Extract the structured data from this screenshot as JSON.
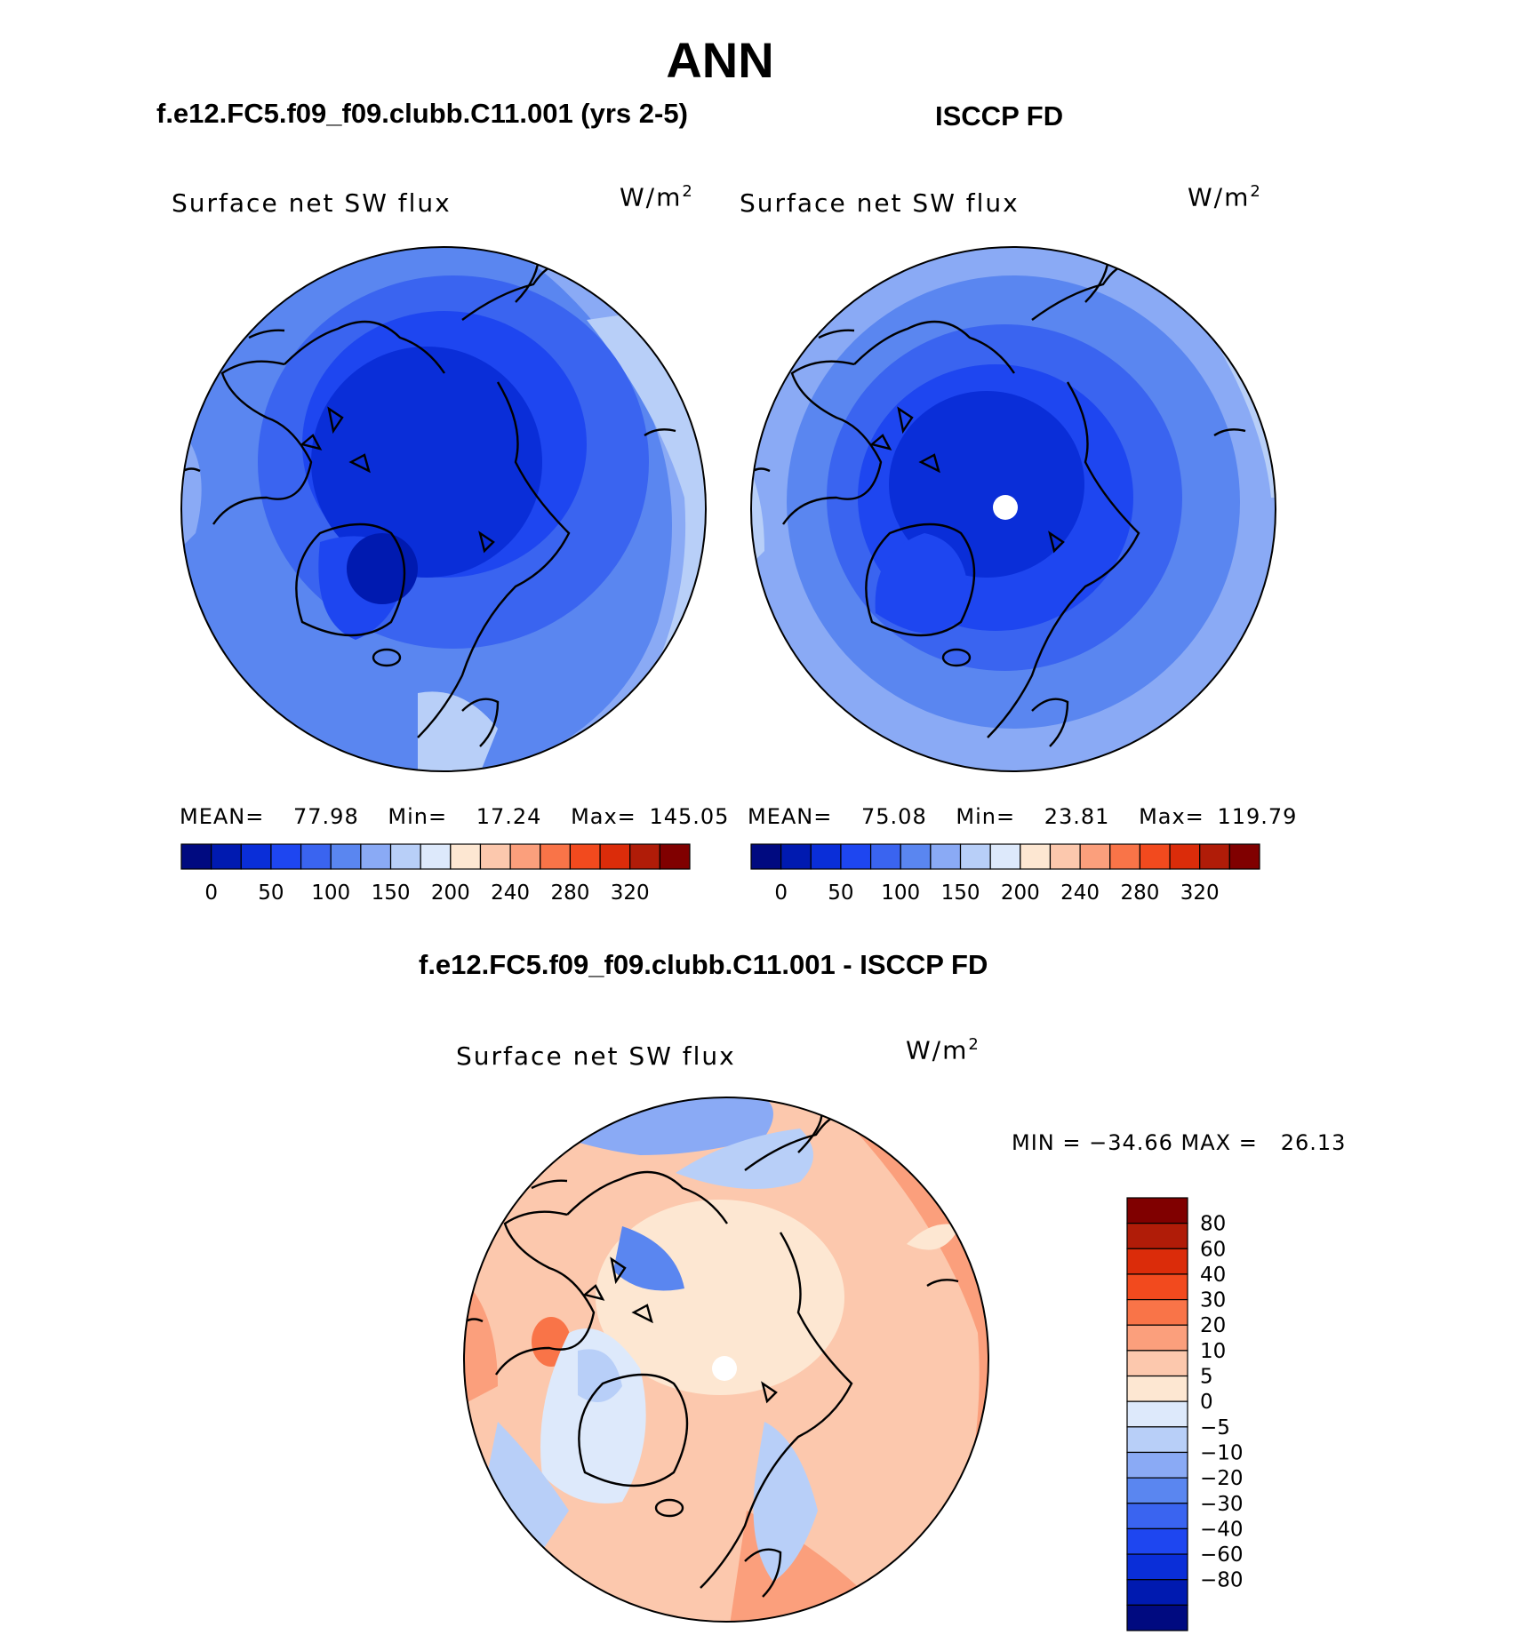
{
  "figure": {
    "title": "ANN",
    "panels": [
      {
        "case_title": "f.e12.FC5.f09_f09.clubb.C11.001 (yrs 2-5)",
        "variable": "Surface net SW flux",
        "units_base": "W/m",
        "units_exp": "2",
        "stats": {
          "mean_label": "MEAN=",
          "mean": "77.98",
          "min_label": "Min=",
          "min": "17.24",
          "max_label": "Max=",
          "max": "145.05"
        },
        "colorbar_labels": [
          "0",
          "50",
          "100",
          "150",
          "200",
          "240",
          "280",
          "320"
        ]
      },
      {
        "case_title": "ISCCP FD",
        "variable": "Surface net SW flux",
        "units_base": "W/m",
        "units_exp": "2",
        "stats": {
          "mean_label": "MEAN=",
          "mean": "75.08",
          "min_label": "Min=",
          "min": "23.81",
          "max_label": "Max=",
          "max": "119.79"
        },
        "colorbar_labels": [
          "0",
          "50",
          "100",
          "150",
          "200",
          "240",
          "280",
          "320"
        ]
      }
    ],
    "diff_panel": {
      "case_title": "f.e12.FC5.f09_f09.clubb.C11.001 - ISCCP FD",
      "variable": "Surface net SW flux",
      "units_base": "W/m",
      "units_exp": "2",
      "stats_text": "MIN = −34.66 MAX =   26.13",
      "colorbar_labels": [
        "80",
        "60",
        "40",
        "30",
        "20",
        "10",
        "5",
        "0",
        "−5",
        "−10",
        "−20",
        "−30",
        "−40",
        "−60",
        "−80"
      ]
    }
  },
  "colors": {
    "field_palette": [
      "#000a80",
      "#001ab0",
      "#0a2ed8",
      "#1e46f0",
      "#3a64f0",
      "#5a86f0",
      "#8aaaf5",
      "#b8cff8",
      "#dde9fb",
      "#fde7d2",
      "#fcc8ad",
      "#fb9f7c",
      "#f97448",
      "#f24a1e",
      "#db2c0a",
      "#b01c08",
      "#800000"
    ],
    "diff_palette": [
      "#800000",
      "#b01c08",
      "#db2c0a",
      "#f24a1e",
      "#f97448",
      "#fb9f7c",
      "#fcc8ad",
      "#fde7d2",
      "#dde9fb",
      "#b8cff8",
      "#8aaaf5",
      "#5a86f0",
      "#3a64f0",
      "#1e46f0",
      "#0a2ed8",
      "#001ab0",
      "#000a80"
    ],
    "land_outline": "#000000"
  }
}
